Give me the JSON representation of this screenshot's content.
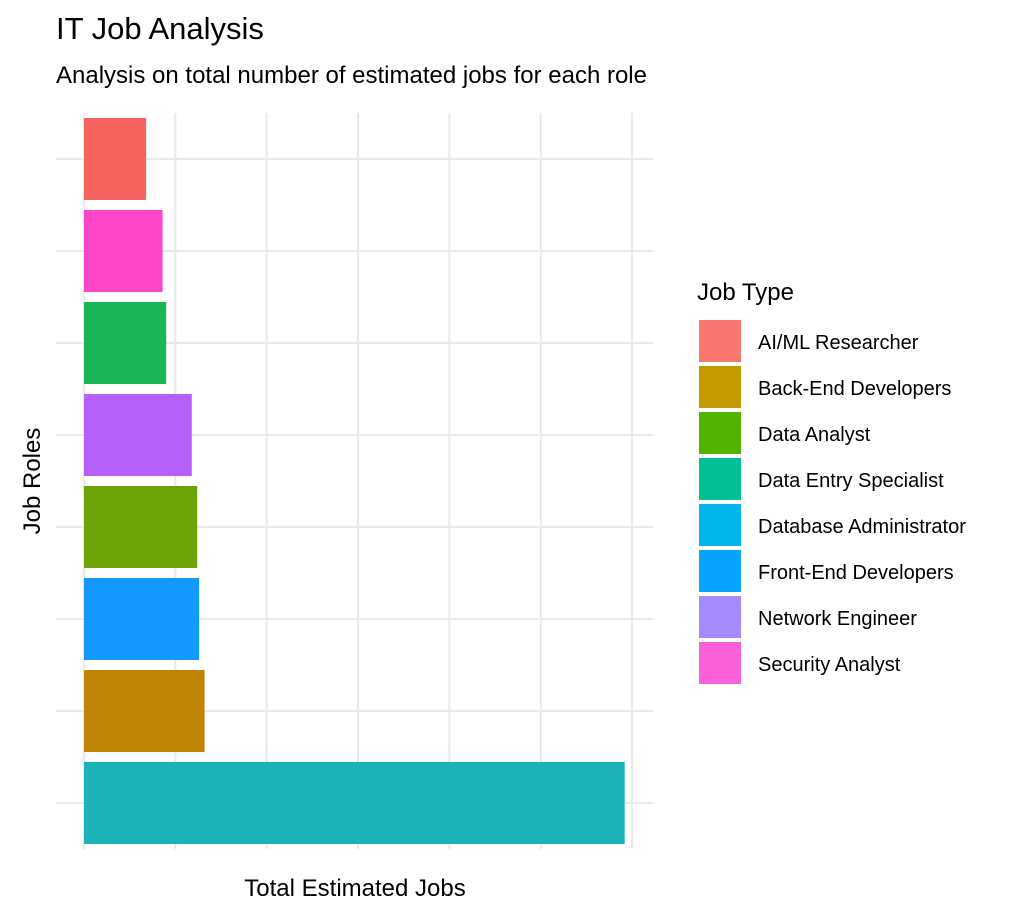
{
  "chart_data": {
    "type": "bar",
    "orientation": "horizontal",
    "title": "IT Job Analysis",
    "subtitle": "Analysis on total number of estimated jobs for each role",
    "xlabel": "Total Estimated Jobs",
    "ylabel": "Job Roles",
    "xlim": [
      0,
      30
    ],
    "x_tick_labels_visible": false,
    "y_tick_labels_visible": false,
    "grid": true,
    "legend": {
      "title": "Job Type",
      "placement": "right",
      "entries": [
        {
          "label": "AI/ML Researcher",
          "color": "#F8766D"
        },
        {
          "label": "Back-End Developers",
          "color": "#C49A00"
        },
        {
          "label": "Data Analyst",
          "color": "#53B400"
        },
        {
          "label": "Data Entry Specialist",
          "color": "#00C094"
        },
        {
          "label": "Database Administrator",
          "color": "#00B6EB"
        },
        {
          "label": "Front-End Developers",
          "color": "#06A4FF"
        },
        {
          "label": "Network Engineer",
          "color": "#A58AFF"
        },
        {
          "label": "Security Analyst",
          "color": "#FB61D7"
        }
      ]
    },
    "categories": [
      "Database Administrator",
      "Back-End Developers",
      "Front-End Developers",
      "Data Analyst",
      "Network Engineer",
      "Data Entry Specialist",
      "Security Analyst",
      "AI/ML Researcher"
    ],
    "values": [
      29.6,
      6.6,
      6.3,
      6.2,
      5.9,
      4.5,
      4.3,
      3.4
    ],
    "colors": [
      "#1AB3B8",
      "#C18304",
      "#1298FF",
      "#6DA304",
      "#B660FA",
      "#18B656",
      "#FF45C7",
      "#F5625D"
    ]
  }
}
